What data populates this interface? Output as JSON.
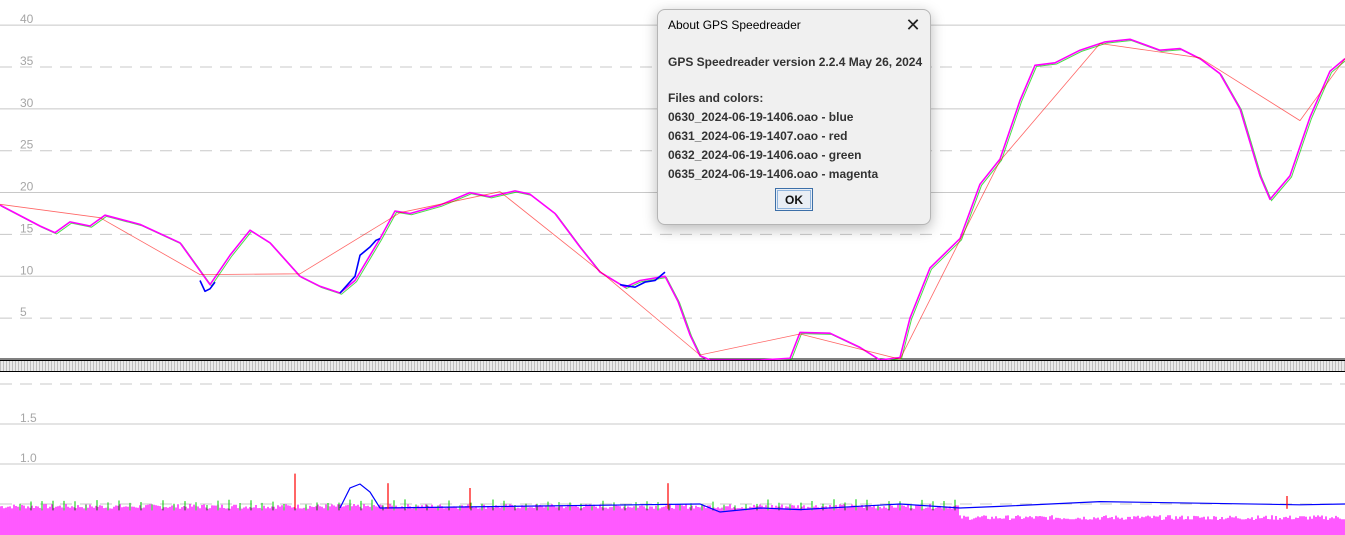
{
  "dialog": {
    "title": "About GPS Speedreader",
    "close_glyph": "✕",
    "version_line": "GPS Speedreader version 2.2.4 May 26, 2024",
    "files_heading": "Files and colors:",
    "files": [
      "0630_2024-06-19-1406.oao - blue",
      "0631_2024-06-19-1407.oao - red",
      "0632_2024-06-19-1406.oao - green",
      "0635_2024-06-19-1406.oao - magenta"
    ],
    "ok_label": "OK"
  },
  "colors": {
    "blue": "#0000ff",
    "red": "#ff0000",
    "green": "#00cc00",
    "magenta": "#ff00ff",
    "grid": "#c8c8c8",
    "tick": "#a6a6a6"
  },
  "chart_data": [
    {
      "type": "line",
      "name": "speed",
      "ylim": [
        0,
        43
      ],
      "yticks": [
        5,
        10,
        15,
        20,
        25,
        30,
        35,
        40
      ],
      "ytick_labels": [
        "5",
        "10",
        "15",
        "20",
        "25",
        "30",
        "35",
        "40"
      ],
      "series": [
        {
          "color": "magenta",
          "x": [
            0,
            40,
            55,
            70,
            90,
            105,
            140,
            180,
            210,
            230,
            250,
            270,
            300,
            320,
            340,
            355,
            380,
            395,
            410,
            440,
            470,
            490,
            515,
            530,
            555,
            580,
            600,
            625,
            640,
            665,
            678,
            690,
            700,
            710,
            760,
            790,
            800,
            830,
            860,
            880,
            900,
            910,
            930,
            960,
            980,
            1000,
            1020,
            1035,
            1055,
            1080,
            1105,
            1130,
            1160,
            1180,
            1200,
            1220,
            1240,
            1260,
            1270,
            1290,
            1310,
            1330,
            1345
          ],
          "y": [
            18.5,
            16.0,
            15.2,
            16.5,
            16.0,
            17.3,
            16.2,
            14.0,
            9.0,
            12.5,
            15.5,
            14.0,
            10.0,
            8.8,
            8.0,
            9.5,
            14.5,
            17.8,
            17.5,
            18.5,
            20.0,
            19.5,
            20.2,
            19.8,
            17.5,
            13.5,
            10.5,
            8.7,
            9.5,
            10.0,
            7.0,
            3.0,
            0.5,
            0,
            0,
            0.2,
            3.3,
            3.2,
            1.5,
            0,
            0.3,
            5.0,
            11.0,
            14.5,
            21.0,
            24.0,
            31.0,
            35.2,
            35.5,
            37.0,
            38.0,
            38.3,
            37.0,
            37.2,
            36.0,
            34.2,
            30.0,
            22.0,
            19.2,
            22.0,
            29.0,
            34.5,
            36.0
          ]
        },
        {
          "color": "blue",
          "x": [
            340,
            355,
            360,
            370,
            376,
            380
          ],
          "y": [
            8.0,
            10.0,
            12.5,
            13.5,
            14.3,
            14.5
          ]
        },
        {
          "color": "blue",
          "x": [
            620,
            635,
            645,
            655,
            665
          ],
          "y": [
            9.0,
            8.7,
            9.3,
            9.5,
            10.5
          ]
        },
        {
          "color": "blue",
          "x": [
            200,
            205,
            210,
            215
          ],
          "y": [
            9.5,
            8.2,
            8.5,
            9.3
          ]
        },
        {
          "color": "red",
          "x": [
            0,
            100,
            200,
            300,
            400,
            500,
            600,
            700,
            800,
            900,
            1000,
            1100,
            1200,
            1300,
            1345
          ],
          "y": [
            18.6,
            17.0,
            10.2,
            10.3,
            17.6,
            20.1,
            10.6,
            0.6,
            3.1,
            0.1,
            23.8,
            37.8,
            36.1,
            28.6,
            36.0
          ]
        }
      ]
    },
    {
      "type": "line",
      "name": "error",
      "ylim": [
        0,
        2.0
      ],
      "yticks": [
        1.0,
        1.5
      ],
      "ytick_labels": [
        "1.0",
        "1.5"
      ],
      "series": [
        {
          "color": "magenta",
          "x": [
            0,
            1345
          ],
          "y": [
            0.28,
            0.28
          ]
        },
        {
          "color": "blue",
          "x": [
            340,
            350,
            360,
            370,
            380,
            700,
            720,
            760,
            800,
            900,
            960,
            1000,
            1100,
            1200,
            1300,
            1345
          ],
          "y": [
            0.3,
            0.55,
            0.6,
            0.5,
            0.3,
            0.35,
            0.25,
            0.3,
            0.28,
            0.35,
            0.3,
            0.32,
            0.38,
            0.36,
            0.34,
            0.35
          ]
        },
        {
          "color": "red",
          "x": [
            295,
            388,
            470,
            668,
            1287
          ],
          "y": [
            0.78,
            0.66,
            0.6,
            0.66,
            0.5
          ]
        }
      ]
    }
  ]
}
